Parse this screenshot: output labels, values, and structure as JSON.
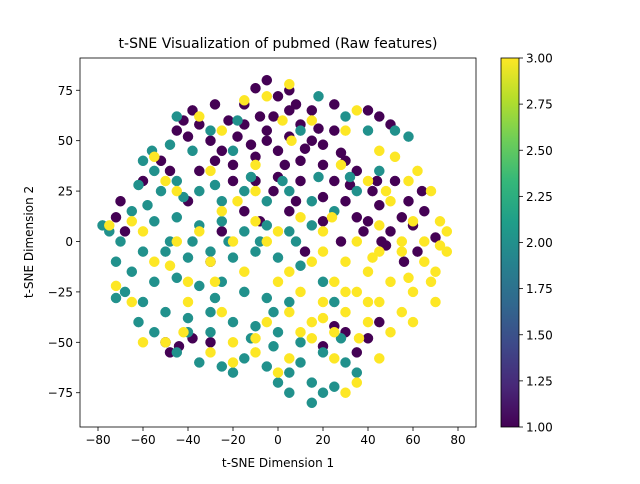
{
  "chart_data": {
    "type": "scatter",
    "title": "t-SNE Visualization of pubmed (Raw features)",
    "xlabel": "t-SNE Dimension 1",
    "ylabel": "t-SNE Dimension 2",
    "xlim": [
      -88,
      88
    ],
    "ylim": [
      -92,
      91
    ],
    "xticks": [
      -80,
      -60,
      -40,
      -20,
      0,
      20,
      40,
      60,
      80
    ],
    "xtick_labels": [
      "−80",
      "−60",
      "−40",
      "−20",
      "0",
      "20",
      "40",
      "60",
      "80"
    ],
    "yticks": [
      -75,
      -50,
      -25,
      0,
      25,
      50,
      75
    ],
    "ytick_labels": [
      "−75",
      "−50",
      "−25",
      "0",
      "25",
      "50",
      "75"
    ],
    "grid": false,
    "colormap": "viridis",
    "colorbar": {
      "min": 1.0,
      "max": 3.0,
      "ticks": [
        1.0,
        1.25,
        1.5,
        1.75,
        2.0,
        2.25,
        2.5,
        2.75,
        3.0
      ],
      "tick_labels": [
        "1.00",
        "1.25",
        "1.50",
        "1.75",
        "2.00",
        "2.25",
        "2.50",
        "2.75",
        "3.00"
      ],
      "stops": [
        "#440154",
        "#482878",
        "#3e4989",
        "#31688e",
        "#26828e",
        "#1f9e89",
        "#35b779",
        "#6ece58",
        "#b5de2b",
        "#fde725"
      ]
    },
    "series": [
      {
        "value": 1,
        "color": "#440154",
        "points": [
          [
            -5,
            80
          ],
          [
            -10,
            76
          ],
          [
            0,
            72
          ],
          [
            5,
            65
          ],
          [
            -8,
            62
          ],
          [
            -15,
            58
          ],
          [
            -5,
            55
          ],
          [
            5,
            52
          ],
          [
            15,
            50
          ],
          [
            20,
            48
          ],
          [
            25,
            55
          ],
          [
            0,
            45
          ],
          [
            -10,
            42
          ],
          [
            10,
            40
          ],
          [
            20,
            38
          ],
          [
            -20,
            38
          ],
          [
            -25,
            45
          ],
          [
            -30,
            50
          ],
          [
            30,
            40
          ],
          [
            35,
            35
          ],
          [
            -35,
            35
          ],
          [
            -20,
            30
          ],
          [
            -10,
            30
          ],
          [
            0,
            32
          ],
          [
            10,
            30
          ],
          [
            25,
            30
          ],
          [
            -5,
            50
          ],
          [
            10,
            58
          ],
          [
            -15,
            68
          ],
          [
            5,
            75
          ],
          [
            -2,
            62
          ],
          [
            12,
            46
          ],
          [
            -18,
            52
          ],
          [
            28,
            44
          ],
          [
            -28,
            40
          ],
          [
            3,
            38
          ],
          [
            -12,
            48
          ],
          [
            18,
            56
          ],
          [
            8,
            68
          ],
          [
            -22,
            60
          ],
          [
            40,
            10
          ],
          [
            45,
            18
          ],
          [
            50,
            5
          ],
          [
            55,
            12
          ],
          [
            60,
            8
          ],
          [
            48,
            -2
          ],
          [
            58,
            20
          ],
          [
            42,
            25
          ],
          [
            65,
            15
          ],
          [
            52,
            30
          ],
          [
            62,
            -5
          ],
          [
            70,
            2
          ],
          [
            38,
            5
          ],
          [
            46,
            0
          ],
          [
            56,
            -10
          ],
          [
            64,
            25
          ],
          [
            30,
            20
          ],
          [
            35,
            12
          ],
          [
            44,
            30
          ],
          [
            -42,
            60
          ],
          [
            -38,
            65
          ],
          [
            -45,
            55
          ],
          [
            -35,
            58
          ],
          [
            -40,
            52
          ],
          [
            40,
            65
          ],
          [
            45,
            62
          ],
          [
            50,
            58
          ],
          [
            -70,
            20
          ],
          [
            -72,
            12
          ],
          [
            -68,
            5
          ],
          [
            -52,
            40
          ],
          [
            -48,
            35
          ],
          [
            -50,
            -50
          ],
          [
            -48,
            -55
          ],
          [
            -38,
            -48
          ],
          [
            -30,
            -50
          ],
          [
            -44,
            -52
          ],
          [
            30,
            -45
          ],
          [
            40,
            -48
          ],
          [
            45,
            -40
          ],
          [
            35,
            -55
          ],
          [
            20,
            -52
          ],
          [
            25,
            -42
          ],
          [
            -25,
            5
          ],
          [
            -30,
            -10
          ],
          [
            -15,
            15
          ],
          [
            -8,
            10
          ],
          [
            5,
            15
          ],
          [
            20,
            10
          ],
          [
            28,
            0
          ],
          [
            12,
            -5
          ],
          [
            -40,
            20
          ],
          [
            -60,
            30
          ],
          [
            15,
            65
          ],
          [
            25,
            68
          ],
          [
            -28,
            68
          ],
          [
            20,
            22
          ],
          [
            -2,
            25
          ],
          [
            8,
            20
          ],
          [
            32,
            28
          ]
        ]
      },
      {
        "value": 2,
        "color": "#21918c",
        "points": [
          [
            -60,
            40
          ],
          [
            -55,
            35
          ],
          [
            -62,
            28
          ],
          [
            -52,
            25
          ],
          [
            -45,
            30
          ],
          [
            -35,
            25
          ],
          [
            -25,
            20
          ],
          [
            -15,
            25
          ],
          [
            -5,
            20
          ],
          [
            5,
            25
          ],
          [
            15,
            20
          ],
          [
            25,
            15
          ],
          [
            35,
            25
          ],
          [
            -65,
            15
          ],
          [
            -55,
            10
          ],
          [
            -45,
            12
          ],
          [
            -35,
            8
          ],
          [
            -25,
            10
          ],
          [
            -15,
            5
          ],
          [
            -5,
            8
          ],
          [
            5,
            5
          ],
          [
            15,
            8
          ],
          [
            -70,
            0
          ],
          [
            -60,
            -5
          ],
          [
            -50,
            -5
          ],
          [
            -40,
            -8
          ],
          [
            -30,
            -5
          ],
          [
            -20,
            -8
          ],
          [
            -10,
            -5
          ],
          [
            0,
            -8
          ],
          [
            10,
            -12
          ],
          [
            -65,
            -15
          ],
          [
            -55,
            -20
          ],
          [
            -45,
            -18
          ],
          [
            -35,
            -22
          ],
          [
            -25,
            -20
          ],
          [
            -15,
            -25
          ],
          [
            -5,
            -28
          ],
          [
            5,
            -30
          ],
          [
            -60,
            -30
          ],
          [
            -50,
            -35
          ],
          [
            -40,
            -38
          ],
          [
            -30,
            -35
          ],
          [
            -20,
            -40
          ],
          [
            -10,
            -42
          ],
          [
            0,
            -45
          ],
          [
            10,
            -50
          ],
          [
            20,
            -55
          ],
          [
            30,
            -60
          ],
          [
            -45,
            -55
          ],
          [
            -35,
            -60
          ],
          [
            -25,
            -62
          ],
          [
            -15,
            -58
          ],
          [
            -5,
            -62
          ],
          [
            5,
            -65
          ],
          [
            15,
            -70
          ],
          [
            25,
            -72
          ],
          [
            5,
            -75
          ],
          [
            15,
            -80
          ],
          [
            0,
            -70
          ],
          [
            -20,
            -65
          ],
          [
            -30,
            -45
          ],
          [
            -40,
            -45
          ],
          [
            -55,
            -45
          ],
          [
            -62,
            -40
          ],
          [
            -68,
            -25
          ],
          [
            -72,
            -10
          ],
          [
            -48,
            0
          ],
          [
            -38,
            0
          ],
          [
            -22,
            0
          ],
          [
            -8,
            0
          ],
          [
            8,
            0
          ],
          [
            -58,
            18
          ],
          [
            -42,
            22
          ],
          [
            -28,
            28
          ],
          [
            -12,
            32
          ],
          [
            2,
            30
          ],
          [
            18,
            32
          ],
          [
            32,
            32
          ],
          [
            -38,
            45
          ],
          [
            -48,
            48
          ],
          [
            -56,
            45
          ],
          [
            30,
            62
          ],
          [
            40,
            55
          ],
          [
            52,
            55
          ],
          [
            58,
            52
          ],
          [
            -45,
            62
          ],
          [
            -30,
            55
          ],
          [
            -20,
            45
          ],
          [
            10,
            55
          ],
          [
            45,
            35
          ],
          [
            25,
            -30
          ],
          [
            20,
            -20
          ],
          [
            28,
            -48
          ],
          [
            35,
            -65
          ],
          [
            20,
            -75
          ],
          [
            10,
            -60
          ],
          [
            -2,
            -52
          ],
          [
            -12,
            -48
          ],
          [
            -75,
            5
          ],
          [
            -72,
            -28
          ],
          [
            -78,
            8
          ],
          [
            -18,
            60
          ],
          [
            18,
            72
          ],
          [
            -2,
            -35
          ],
          [
            -28,
            -28
          ]
        ]
      },
      {
        "value": 3,
        "color": "#fde725",
        "points": [
          [
            20,
            -5
          ],
          [
            30,
            -10
          ],
          [
            40,
            -15
          ],
          [
            50,
            -20
          ],
          [
            60,
            -25
          ],
          [
            70,
            -15
          ],
          [
            75,
            -5
          ],
          [
            65,
            0
          ],
          [
            55,
            -5
          ],
          [
            45,
            -5
          ],
          [
            35,
            0
          ],
          [
            25,
            -20
          ],
          [
            35,
            -25
          ],
          [
            45,
            -30
          ],
          [
            55,
            -35
          ],
          [
            40,
            -40
          ],
          [
            30,
            -35
          ],
          [
            20,
            -30
          ],
          [
            10,
            -25
          ],
          [
            15,
            -40
          ],
          [
            5,
            -35
          ],
          [
            25,
            -45
          ],
          [
            50,
            -45
          ],
          [
            60,
            -40
          ],
          [
            70,
            -30
          ],
          [
            75,
            5
          ],
          [
            72,
            10
          ],
          [
            68,
            25
          ],
          [
            62,
            35
          ],
          [
            58,
            30
          ],
          [
            50,
            20
          ],
          [
            45,
            8
          ],
          [
            55,
            0
          ],
          [
            65,
            -10
          ],
          [
            5,
            -15
          ],
          [
            15,
            -10
          ],
          [
            30,
            -25
          ],
          [
            40,
            -30
          ],
          [
            20,
            -38
          ],
          [
            10,
            -45
          ],
          [
            0,
            -20
          ],
          [
            -20,
            0
          ],
          [
            -30,
            -10
          ],
          [
            -35,
            5
          ],
          [
            -10,
            10
          ],
          [
            -25,
            15
          ],
          [
            -45,
            0
          ],
          [
            -55,
            -10
          ],
          [
            -40,
            -30
          ],
          [
            -30,
            -55
          ],
          [
            -20,
            -60
          ],
          [
            -10,
            -55
          ],
          [
            0,
            -65
          ],
          [
            -40,
            -20
          ],
          [
            -15,
            -15
          ],
          [
            -65,
            10
          ],
          [
            -75,
            8
          ],
          [
            -60,
            5
          ],
          [
            -50,
            30
          ],
          [
            -45,
            25
          ],
          [
            -55,
            42
          ],
          [
            -25,
            55
          ],
          [
            -15,
            70
          ],
          [
            -5,
            72
          ],
          [
            5,
            78
          ],
          [
            -35,
            62
          ],
          [
            30,
            55
          ],
          [
            35,
            65
          ],
          [
            45,
            45
          ],
          [
            52,
            42
          ],
          [
            40,
            30
          ],
          [
            28,
            38
          ],
          [
            -10,
            38
          ],
          [
            2,
            60
          ],
          [
            15,
            60
          ],
          [
            -72,
            -22
          ],
          [
            -65,
            -30
          ],
          [
            -50,
            -50
          ],
          [
            -20,
            -50
          ],
          [
            -10,
            -48
          ],
          [
            5,
            -58
          ],
          [
            15,
            -48
          ],
          [
            -5,
            -40
          ],
          [
            -25,
            -35
          ],
          [
            -42,
            -45
          ],
          [
            20,
            5
          ],
          [
            10,
            12
          ],
          [
            0,
            5
          ],
          [
            -10,
            25
          ],
          [
            -30,
            35
          ],
          [
            -60,
            -50
          ],
          [
            30,
            -75
          ],
          [
            35,
            -70
          ],
          [
            25,
            -58
          ],
          [
            45,
            -58
          ],
          [
            68,
            -20
          ],
          [
            72,
            -2
          ],
          [
            36,
            -48
          ],
          [
            24,
            12
          ],
          [
            -5,
            0
          ],
          [
            -28,
            -20
          ],
          [
            -48,
            -12
          ],
          [
            60,
            10
          ],
          [
            48,
            25
          ],
          [
            58,
            -18
          ],
          [
            42,
            -8
          ],
          [
            -18,
            20
          ],
          [
            6,
            50
          ]
        ]
      }
    ]
  }
}
